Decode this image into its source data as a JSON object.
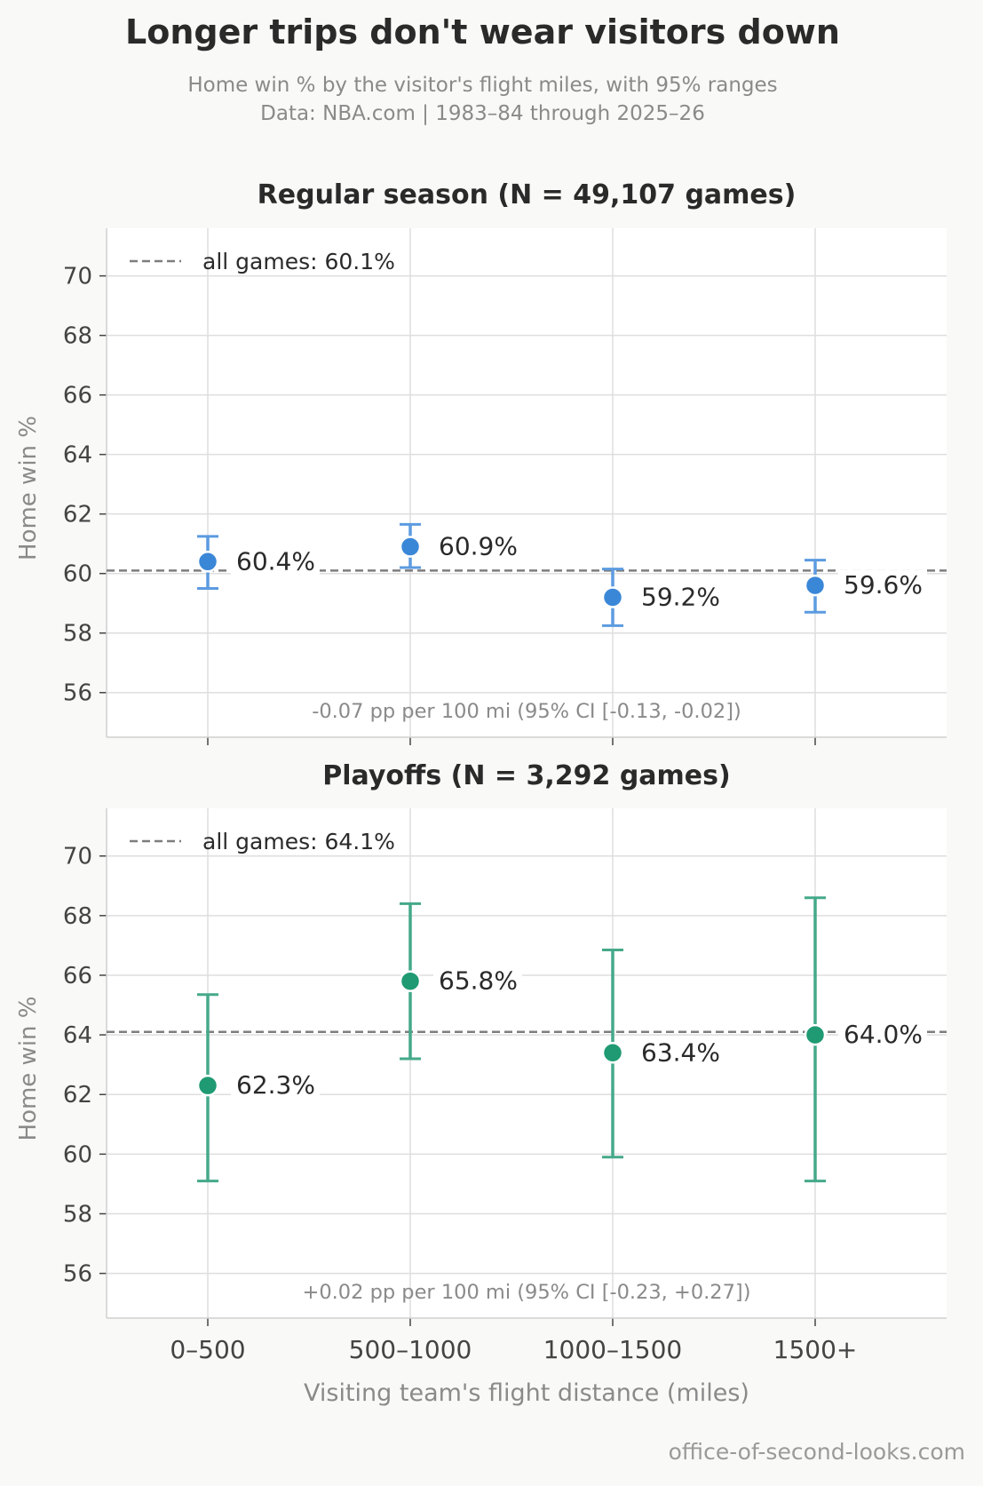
{
  "header": {
    "title": "Longer trips don't wear visitors down",
    "subtitle_line1": "Home win % by the visitor's flight miles, with 95% ranges",
    "subtitle_line2": "Data: NBA.com  |  1983–84 through 2025–26"
  },
  "footer": {
    "credit": "office-of-second-looks.com"
  },
  "chart_data": [
    {
      "type": "scatter",
      "title": "Regular season  (N = 49,107 games)",
      "ylabel": "Home win %",
      "xlabel": "",
      "categories": [
        "0–500",
        "500–1000",
        "1000–1500",
        "1500+"
      ],
      "values": [
        60.4,
        60.9,
        59.2,
        59.6
      ],
      "ci_low": [
        59.5,
        60.2,
        58.25,
        58.7
      ],
      "ci_high": [
        61.25,
        61.65,
        60.15,
        60.45
      ],
      "point_labels": [
        "60.4%",
        "60.9%",
        "59.2%",
        "59.6%"
      ],
      "baseline": 60.1,
      "legend_label": "all games: 60.1%",
      "legend_position": "top-left",
      "annotation": "-0.07 pp per 100 mi  (95% CI [-0.13, -0.02])",
      "yticks": [
        56,
        58,
        60,
        62,
        64,
        66,
        68,
        70
      ],
      "ylim": [
        54.5,
        71.6
      ],
      "grid": true,
      "color": "#3a87d8",
      "errorbar_color": "#5c9be0"
    },
    {
      "type": "scatter",
      "title": "Playoffs  (N = 3,292 games)",
      "ylabel": "Home win %",
      "xlabel": "Visiting team's flight distance (miles)",
      "categories": [
        "0–500",
        "500–1000",
        "1000–1500",
        "1500+"
      ],
      "values": [
        62.3,
        65.8,
        63.4,
        64.0
      ],
      "ci_low": [
        59.1,
        63.2,
        59.9,
        59.1
      ],
      "ci_high": [
        65.35,
        68.4,
        66.85,
        68.6
      ],
      "point_labels": [
        "62.3%",
        "65.8%",
        "63.4%",
        "64.0%"
      ],
      "baseline": 64.1,
      "legend_label": "all games: 64.1%",
      "legend_position": "top-left",
      "annotation": "+0.02 pp per 100 mi  (95% CI [-0.23, +0.27])",
      "yticks": [
        56,
        58,
        60,
        62,
        64,
        66,
        68,
        70
      ],
      "ylim": [
        54.5,
        71.6
      ],
      "grid": true,
      "color": "#1f9a72",
      "errorbar_color": "#45a98a"
    }
  ]
}
